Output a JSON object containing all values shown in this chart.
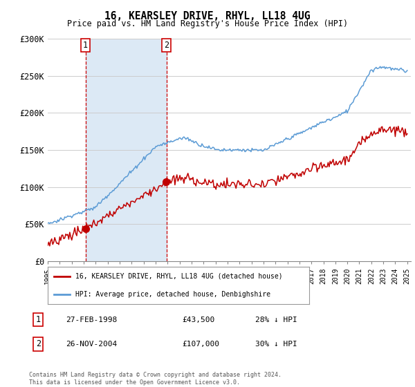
{
  "title": "16, KEARSLEY DRIVE, RHYL, LL18 4UG",
  "subtitle": "Price paid vs. HM Land Registry's House Price Index (HPI)",
  "ylim": [
    0,
    300000
  ],
  "yticks": [
    0,
    50000,
    100000,
    150000,
    200000,
    250000,
    300000
  ],
  "ytick_labels": [
    "£0",
    "£50K",
    "£100K",
    "£150K",
    "£200K",
    "£250K",
    "£300K"
  ],
  "xstart_year": 1995,
  "xend_year": 2025,
  "hpi_color": "#5b9bd5",
  "price_color": "#c00000",
  "t1_year": 1998.15,
  "t1_price": 43500,
  "t2_year": 2004.9,
  "t2_price": 107000,
  "legend_label_price": "16, KEARSLEY DRIVE, RHYL, LL18 4UG (detached house)",
  "legend_label_hpi": "HPI: Average price, detached house, Denbighshire",
  "footnote": "Contains HM Land Registry data © Crown copyright and database right 2024.\nThis data is licensed under the Open Government Licence v3.0.",
  "background_color": "#ffffff",
  "grid_color": "#cccccc",
  "shade_color": "#dce9f5",
  "vline_color": "#cc0000"
}
